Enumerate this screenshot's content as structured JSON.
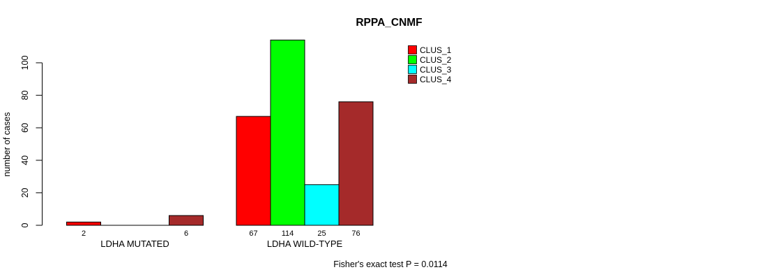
{
  "chart_data": {
    "type": "bar",
    "title": "RPPA_CNMF",
    "xlabel": "",
    "ylabel": "number of cases",
    "annotation": "Fisher's exact test P = 0.0114",
    "y_ticks": [
      0,
      20,
      40,
      60,
      80,
      100
    ],
    "ylim": [
      0,
      114
    ],
    "grid": false,
    "legend_position": "top-right",
    "bar_border_color": "#000000",
    "axis_color": "#000000",
    "series": [
      {
        "name": "CLUS_1",
        "color": "#ff0000"
      },
      {
        "name": "CLUS_2",
        "color": "#00ff00"
      },
      {
        "name": "CLUS_3",
        "color": "#00ffff"
      },
      {
        "name": "CLUS_4",
        "color": "#a52a2a"
      }
    ],
    "groups": [
      {
        "label": "LDHA MUTATED",
        "values": [
          2,
          0,
          0,
          6
        ],
        "bar_labels": [
          "2",
          "",
          "",
          "6"
        ]
      },
      {
        "label": "LDHA WILD-TYPE",
        "values": [
          67,
          114,
          25,
          76
        ],
        "bar_labels": [
          "67",
          "114",
          "25",
          "76"
        ]
      }
    ]
  }
}
